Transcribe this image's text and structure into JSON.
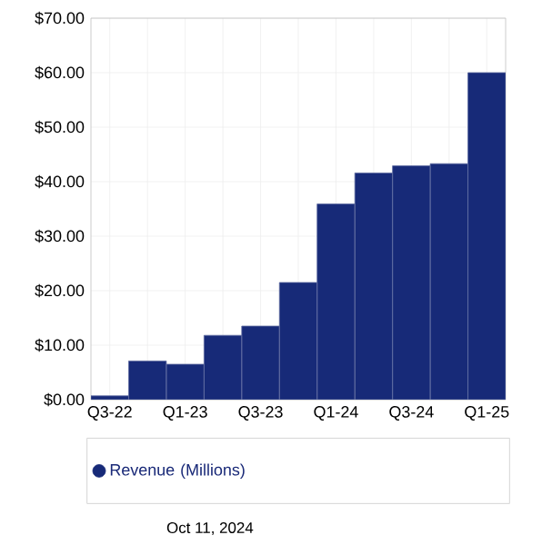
{
  "chart_data": {
    "type": "bar",
    "categories": [
      "Q3-22",
      null,
      "Q1-23",
      null,
      "Q3-23",
      null,
      "Q1-24",
      null,
      "Q3-24",
      null,
      "Q1-25"
    ],
    "series": [
      {
        "name": "Revenue (Millions)",
        "color": "#172a78",
        "values": [
          0.7,
          7.1,
          6.5,
          11.8,
          13.5,
          21.5,
          35.9,
          41.6,
          42.9,
          43.3,
          60.0
        ]
      }
    ],
    "ylim": [
      0,
      70
    ],
    "yticks": [
      {
        "value": 0,
        "label": "$0.00"
      },
      {
        "value": 10,
        "label": "$10.00"
      },
      {
        "value": 20,
        "label": "$20.00"
      },
      {
        "value": 30,
        "label": "$30.00"
      },
      {
        "value": 40,
        "label": "$40.00"
      },
      {
        "value": 50,
        "label": "$50.00"
      },
      {
        "value": 60,
        "label": "$60.00"
      },
      {
        "value": 70,
        "label": "$70.00"
      }
    ],
    "grid": true,
    "legend": "bottom",
    "annotations": [
      "Oct 11, 2024"
    ]
  }
}
